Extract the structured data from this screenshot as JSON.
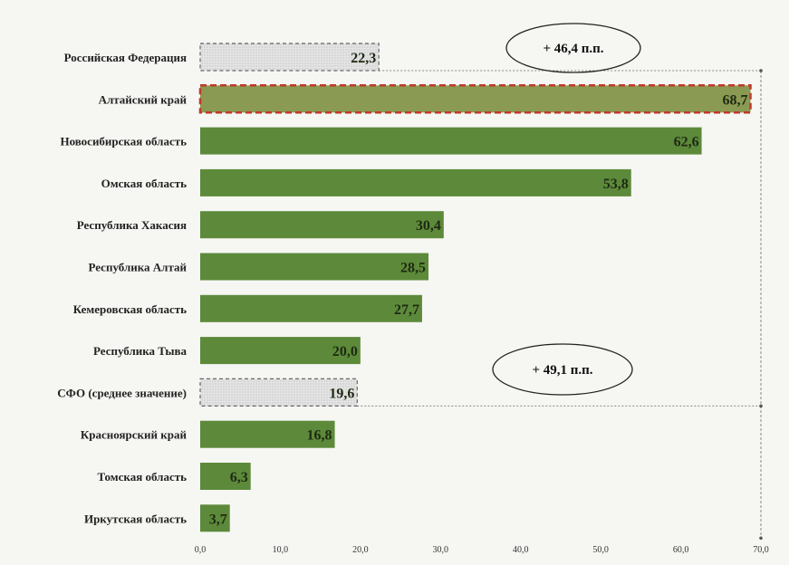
{
  "chart_data": {
    "type": "bar",
    "orientation": "horizontal",
    "categories": [
      "Российская Федерация",
      "Алтайский край",
      "Новосибирская область",
      "Омская область",
      "Республика Хакасия",
      "Республика Алтай",
      "Кемеровская область",
      "Республика Тыва",
      "СФО (среднее значение)",
      "Красноярский край",
      "Томская область",
      "Иркутская область"
    ],
    "values": [
      22.3,
      68.7,
      62.6,
      53.8,
      30.4,
      28.5,
      27.7,
      20.0,
      19.6,
      16.8,
      6.3,
      3.7
    ],
    "value_labels": [
      "22,3",
      "68,7",
      "62,6",
      "53,8",
      "30,4",
      "28,5",
      "27,7",
      "20,0",
      "19,6",
      "16,8",
      "6,3",
      "3,7"
    ],
    "bar_styles": [
      "reference",
      "highlight",
      "normal",
      "normal",
      "normal",
      "normal",
      "normal",
      "normal",
      "reference",
      "normal",
      "normal",
      "normal"
    ],
    "xlim": [
      0,
      70
    ],
    "ticks": [
      "0,0",
      "10,0",
      "20,0",
      "30,0",
      "40,0",
      "50,0",
      "60,0",
      "70,0"
    ],
    "tick_values": [
      0,
      10,
      20,
      30,
      40,
      50,
      60,
      70
    ],
    "annotations": [
      {
        "text": "+ 46,4 п.п.",
        "from": 22.3,
        "to": 68.7,
        "anchor": "top"
      },
      {
        "text": "+ 49,1 п.п.",
        "from": 19.6,
        "to": 68.7,
        "anchor": "lower"
      }
    ],
    "grid": false,
    "legend": "none",
    "colors": {
      "bar": "#5d8a3a",
      "bar_highlight": "#8b9a52",
      "highlight_border": "#c0392b",
      "reference_fill": "#e4e4e4",
      "reference_border": "#666666",
      "connector": "#888888"
    }
  }
}
